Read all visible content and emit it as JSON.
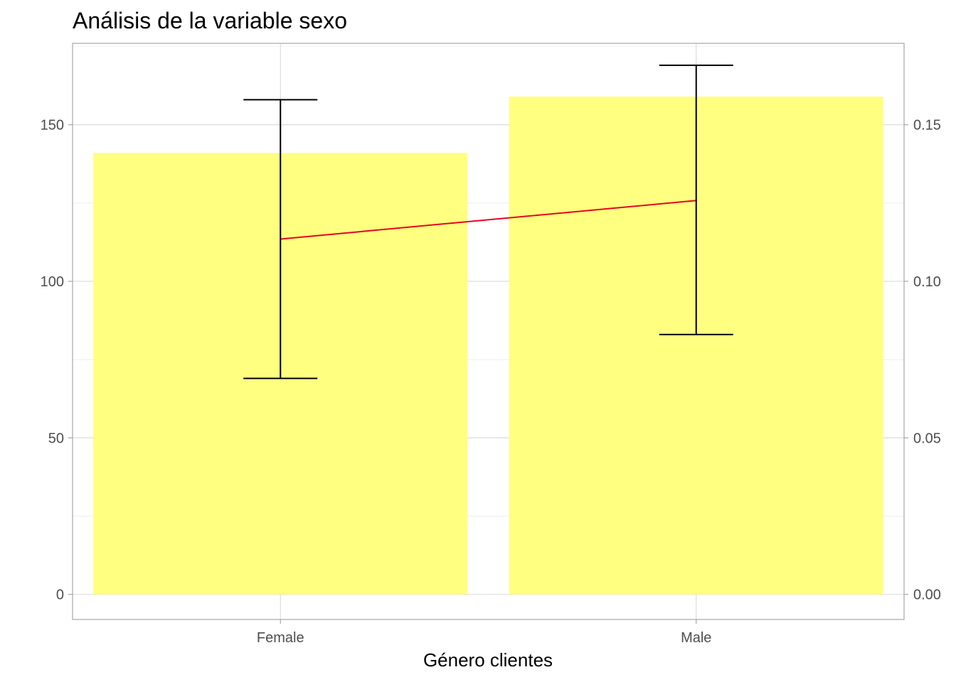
{
  "chart_data": {
    "type": "bar",
    "title": "Análisis de la variable sexo",
    "xlabel": "Género clientes",
    "ylabel": "",
    "categories": [
      "Female",
      "Male"
    ],
    "values": [
      141,
      159
    ],
    "ylim": [
      -8,
      176
    ],
    "yticks": [
      0,
      50,
      100,
      150
    ],
    "y_secondary": {
      "ticks": [
        0.0,
        0.05,
        0.1,
        0.15
      ],
      "tick_labels": [
        "0.00",
        "0.05",
        "0.10",
        "0.15"
      ],
      "scale_factor": 1000
    },
    "error_bars": [
      {
        "category": "Female",
        "low": 69,
        "high": 158
      },
      {
        "category": "Male",
        "low": 83,
        "high": 169
      }
    ],
    "line": {
      "values_secondary": [
        0.1135,
        0.1258
      ],
      "color": "#e4061c"
    },
    "bar_color": "#ffff80",
    "errorbar_color": "#000000",
    "grid": true,
    "legend": "none"
  }
}
